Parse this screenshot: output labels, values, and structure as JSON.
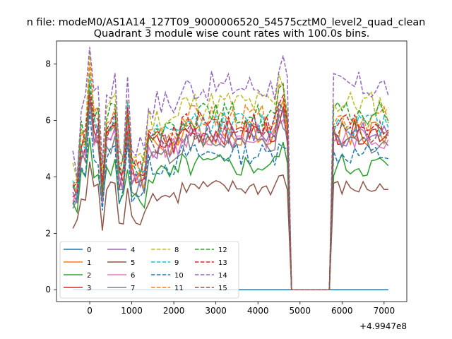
{
  "chart_data": {
    "type": "line",
    "suptitle": "n file: modeM0/AS1A14_127T09_9000006520_54575cztM0_level2_quad_clean",
    "title": "Quadrant 3 module wise count rates with 100.0s bins.",
    "xlabel": "",
    "ylabel": "",
    "x_offset_label": "+4.9947e8",
    "xlim": [
      -790,
      7540
    ],
    "ylim": [
      -0.42,
      8.82
    ],
    "xticks": [
      0,
      1000,
      2000,
      3000,
      4000,
      5000,
      6000,
      7000
    ],
    "yticks": [
      0,
      2,
      4,
      6,
      8
    ],
    "legend_position": "lower-left",
    "series": [
      {
        "name": "0",
        "color": "#1f77b4",
        "dash": "solid",
        "level": 0,
        "amp": 0
      },
      {
        "name": "1",
        "color": "#ff7f0e",
        "dash": "solid",
        "level": 5.6,
        "amp": 0.5
      },
      {
        "name": "2",
        "color": "#2ca02c",
        "dash": "solid",
        "level": 4.4,
        "amp": 0.45
      },
      {
        "name": "3",
        "color": "#d62728",
        "dash": "solid",
        "level": 5.6,
        "amp": 0.45
      },
      {
        "name": "4",
        "color": "#9467bd",
        "dash": "solid",
        "level": 5.5,
        "amp": 0.45
      },
      {
        "name": "5",
        "color": "#8c564b",
        "dash": "solid",
        "level": 3.6,
        "amp": 0.3
      },
      {
        "name": "6",
        "color": "#e377c2",
        "dash": "solid",
        "level": 5.4,
        "amp": 0.4
      },
      {
        "name": "7",
        "color": "#7f7f7f",
        "dash": "solid",
        "level": 5.2,
        "amp": 0.4
      },
      {
        "name": "8",
        "color": "#bcbd22",
        "dash": "dashed",
        "level": 6.6,
        "amp": 0.5
      },
      {
        "name": "9",
        "color": "#17becf",
        "dash": "dashed",
        "level": 5.9,
        "amp": 0.45
      },
      {
        "name": "10",
        "color": "#1f77b4",
        "dash": "dashed",
        "level": 4.8,
        "amp": 0.4
      },
      {
        "name": "11",
        "color": "#ff7f0e",
        "dash": "dashed",
        "level": 6.1,
        "amp": 0.45
      },
      {
        "name": "12",
        "color": "#2ca02c",
        "dash": "dashed",
        "level": 6.2,
        "amp": 0.45
      },
      {
        "name": "13",
        "color": "#d62728",
        "dash": "dashed",
        "level": 5.9,
        "amp": 0.45
      },
      {
        "name": "14",
        "color": "#9467bd",
        "dash": "dashed",
        "level": 7.2,
        "amp": 0.55
      },
      {
        "name": "15",
        "color": "#8c564b",
        "dash": "dashed",
        "level": 5.6,
        "amp": 0.4
      }
    ],
    "time_axis": {
      "start": -400,
      "step": 100,
      "end": 7150,
      "gap_start": 4800,
      "gap_end": 5750
    }
  }
}
